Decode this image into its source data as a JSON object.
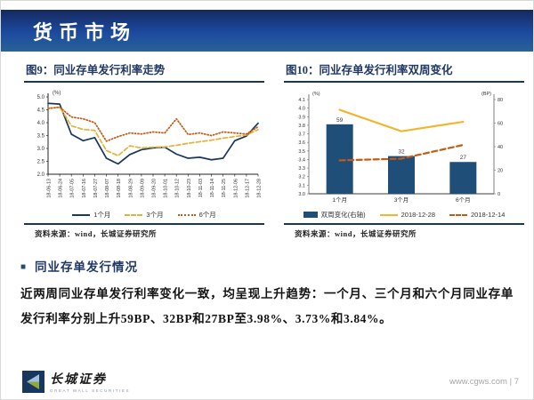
{
  "page": {
    "header_title": "货币市场",
    "section": {
      "bullet": "■",
      "heading": "同业存单发行情况",
      "body": "近两周同业存单发行利率变化一致，均呈现上升趋势：一个月、三个月和六个月同业存单发行利率分别上升59BP、32BP和27BP至3.98%、3.73%和3.84%。"
    },
    "footer": {
      "brand_cn": "长城证券",
      "brand_en": "GREAT WALL SECURITIES",
      "site_page": "www.cgws.com | 7"
    }
  },
  "colors": {
    "navy": "#17375E",
    "title_navy": "#1F3864",
    "bar_blue": "#1F4E79",
    "gold": "#E3B339",
    "orange": "#C55A11",
    "axis_dark": "#222222",
    "axis_gray": "#7f7f7f"
  },
  "fig9": {
    "title": "图9：同业存单发行利率走势",
    "source": "资料来源：wind，长城证券研究所"
  },
  "fig10": {
    "title": "图10：同业存单发行利率双周变化",
    "source": "资料来源：wind，长城证券研究所"
  },
  "chart_data": [
    {
      "type": "line",
      "title": "同业存单发行利率走势",
      "ylabel": "(%)",
      "ylim": [
        2.0,
        5.0
      ],
      "ytick_step": 0.5,
      "grid": false,
      "legend_position": "bottom",
      "x": [
        "18-06-13",
        "18-06-24",
        "18-07-05",
        "18-07-16",
        "18-07-27",
        "18-08-07",
        "18-08-18",
        "18-08-29",
        "18-09-09",
        "18-09-20",
        "18-10-01",
        "18-10-12",
        "18-10-23",
        "18-11-03",
        "18-11-14",
        "18-11-25",
        "18-12-06",
        "18-12-17",
        "18-12-28"
      ],
      "series": [
        {
          "name": "1个月",
          "style": "solid",
          "color": "#17375E",
          "values": [
            4.75,
            4.72,
            3.55,
            3.3,
            3.42,
            2.62,
            2.4,
            2.76,
            2.95,
            3.02,
            3.05,
            2.78,
            2.62,
            2.66,
            2.56,
            2.62,
            3.3,
            3.48,
            3.98
          ]
        },
        {
          "name": "3个月",
          "style": "dashed",
          "color": "#E3B339",
          "values": [
            4.56,
            4.6,
            3.88,
            3.74,
            3.7,
            2.92,
            2.72,
            3.1,
            3.02,
            3.05,
            3.06,
            3.12,
            3.2,
            3.26,
            3.32,
            3.4,
            3.46,
            3.52,
            3.73
          ]
        },
        {
          "name": "6个月",
          "style": "dotted",
          "color": "#C55A11",
          "values": [
            4.55,
            4.6,
            4.22,
            4.15,
            4.0,
            3.28,
            3.46,
            3.6,
            3.56,
            3.64,
            3.6,
            4.15,
            3.54,
            3.6,
            3.5,
            3.64,
            3.6,
            3.56,
            3.84
          ]
        }
      ]
    },
    {
      "type": "bar+line",
      "title": "同业存单发行利率双周变化",
      "categories": [
        "1个月",
        "3个月",
        "6个月"
      ],
      "left_axis": {
        "label": "(%)",
        "lim": [
          3.0,
          4.1
        ],
        "step": 0.1
      },
      "right_axis": {
        "label": "(BP)",
        "lim": [
          0,
          80
        ],
        "step": 20
      },
      "bar_series": {
        "name": "双周变化(右轴)",
        "axis": "right",
        "color": "#1F4E79",
        "values": [
          59,
          32,
          27
        ]
      },
      "line_series": [
        {
          "name": "2018-12-28",
          "style": "solid",
          "color": "#F0B62F",
          "values": [
            3.98,
            3.73,
            3.84
          ]
        },
        {
          "name": "2018-12-14",
          "style": "dashed",
          "color": "#C55A11",
          "values": [
            3.39,
            3.41,
            3.57
          ]
        }
      ]
    }
  ]
}
